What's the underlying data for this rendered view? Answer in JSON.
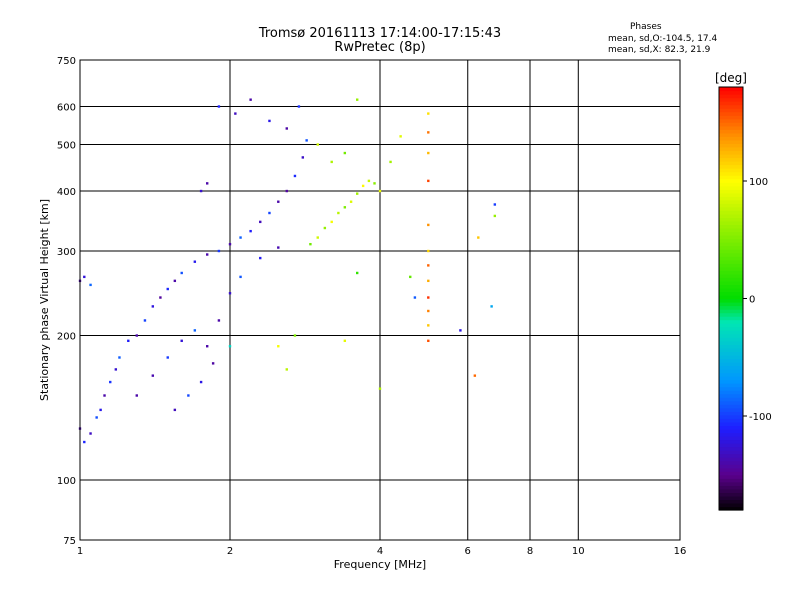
{
  "chart_data": {
    "type": "scatter",
    "title": "Tromsø 20161113 17:14:00-17:15:43",
    "subtitle": "RwPretec (8p)",
    "xlabel": "Frequency [MHz]",
    "ylabel": "Stationary phase Virtual Height [km]",
    "xscale": "log",
    "yscale": "log",
    "xlim": [
      1,
      16
    ],
    "ylim": [
      75,
      750
    ],
    "x_ticks": [
      1,
      2,
      4,
      6,
      8,
      10,
      16
    ],
    "y_ticks": [
      75,
      100,
      200,
      300,
      400,
      500,
      600,
      750
    ],
    "grid": true,
    "colorbar": {
      "label": "[deg]",
      "range": [
        -180,
        180
      ],
      "ticks": [
        100,
        0,
        -100
      ],
      "colormap": "rainbow (black-purple-blue-cyan-green-yellow-red)"
    },
    "stats": {
      "header": "Phases",
      "line1": "mean, sd,O:-104.5, 17.4",
      "line2": "mean, sd,X:  82.3, 21.9"
    },
    "series": [
      {
        "mode": "O-trace (blue/purple)",
        "points": [
          [
            1.0,
            128
          ],
          [
            1.02,
            120
          ],
          [
            1.05,
            125
          ],
          [
            1.08,
            135
          ],
          [
            1.1,
            140
          ],
          [
            1.12,
            150
          ],
          [
            1.15,
            160
          ],
          [
            1.18,
            170
          ],
          [
            1.2,
            180
          ],
          [
            1.25,
            195
          ],
          [
            1.3,
            200
          ],
          [
            1.35,
            215
          ],
          [
            1.4,
            230
          ],
          [
            1.45,
            240
          ],
          [
            1.5,
            250
          ],
          [
            1.55,
            260
          ],
          [
            1.6,
            270
          ],
          [
            1.7,
            285
          ],
          [
            1.8,
            295
          ],
          [
            1.9,
            300
          ],
          [
            2.0,
            310
          ],
          [
            2.1,
            320
          ],
          [
            2.2,
            330
          ],
          [
            2.3,
            345
          ],
          [
            2.4,
            360
          ],
          [
            2.5,
            380
          ],
          [
            2.6,
            400
          ],
          [
            2.7,
            430
          ],
          [
            2.8,
            470
          ],
          [
            2.85,
            510
          ],
          [
            1.3,
            150
          ],
          [
            1.4,
            165
          ],
          [
            1.5,
            180
          ],
          [
            1.6,
            195
          ],
          [
            1.7,
            205
          ],
          [
            1.8,
            190
          ],
          [
            1.55,
            140
          ],
          [
            1.65,
            150
          ],
          [
            1.75,
            160
          ],
          [
            1.85,
            175
          ],
          [
            1.9,
            215
          ],
          [
            2.0,
            245
          ],
          [
            2.1,
            265
          ],
          [
            2.3,
            290
          ],
          [
            2.5,
            305
          ],
          [
            1.0,
            260
          ],
          [
            1.02,
            265
          ],
          [
            1.05,
            255
          ],
          [
            1.9,
            600
          ],
          [
            2.05,
            580
          ],
          [
            2.2,
            620
          ],
          [
            2.4,
            560
          ],
          [
            2.6,
            540
          ],
          [
            2.75,
            600
          ],
          [
            1.75,
            400
          ],
          [
            1.8,
            415
          ]
        ]
      },
      {
        "mode": "X-trace (yellow/green)",
        "points": [
          [
            2.9,
            310
          ],
          [
            3.0,
            320
          ],
          [
            3.1,
            335
          ],
          [
            3.2,
            345
          ],
          [
            3.3,
            360
          ],
          [
            3.4,
            370
          ],
          [
            3.5,
            380
          ],
          [
            3.6,
            395
          ],
          [
            3.7,
            410
          ],
          [
            3.8,
            420
          ],
          [
            3.9,
            415
          ],
          [
            4.0,
            400
          ],
          [
            3.2,
            460
          ],
          [
            3.4,
            480
          ],
          [
            3.0,
            500
          ],
          [
            3.6,
            620
          ],
          [
            2.5,
            190
          ],
          [
            2.6,
            170
          ],
          [
            2.7,
            200
          ],
          [
            4.4,
            520
          ],
          [
            4.2,
            460
          ]
        ]
      },
      {
        "mode": "Vertical echo column near 5 MHz",
        "points": [
          [
            5.0,
            580
          ],
          [
            5.0,
            530
          ],
          [
            5.0,
            480
          ],
          [
            5.0,
            420
          ],
          [
            5.0,
            340
          ],
          [
            5.0,
            300
          ],
          [
            5.0,
            280
          ],
          [
            5.0,
            260
          ],
          [
            5.0,
            240
          ],
          [
            5.0,
            225
          ],
          [
            5.0,
            210
          ],
          [
            5.0,
            195
          ]
        ]
      },
      {
        "mode": "Scattered echoes",
        "points": [
          [
            6.8,
            375
          ],
          [
            6.8,
            355
          ],
          [
            6.7,
            230
          ],
          [
            6.3,
            320
          ],
          [
            5.8,
            205
          ],
          [
            6.2,
            165
          ],
          [
            4.0,
            155
          ],
          [
            4.7,
            240
          ],
          [
            3.6,
            270
          ],
          [
            3.4,
            195
          ],
          [
            2.0,
            190
          ],
          [
            4.6,
            265
          ]
        ]
      }
    ]
  }
}
